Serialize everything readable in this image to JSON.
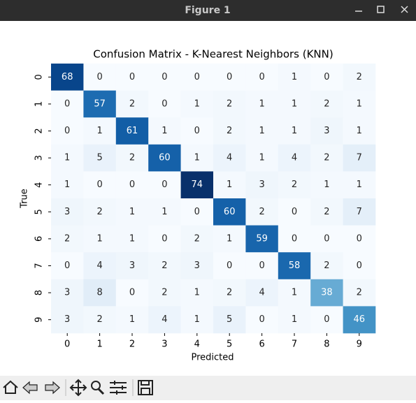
{
  "window_title": "Figure 1",
  "chart_data": {
    "type": "heatmap",
    "title": "Confusion Matrix - K-Nearest Neighbors (KNN)",
    "x_label": "Predicted",
    "y_label": "True",
    "categories": [
      "0",
      "1",
      "2",
      "3",
      "4",
      "5",
      "6",
      "7",
      "8",
      "9"
    ],
    "y_categories": [
      "0",
      "1",
      "2",
      "3",
      "4",
      "5",
      "6",
      "7",
      "8",
      "9"
    ],
    "cmap": "Blues",
    "matrix": [
      [
        68,
        0,
        0,
        0,
        0,
        0,
        0,
        1,
        0,
        2
      ],
      [
        0,
        57,
        2,
        0,
        1,
        2,
        1,
        1,
        2,
        1
      ],
      [
        0,
        1,
        61,
        1,
        0,
        2,
        1,
        1,
        3,
        1
      ],
      [
        1,
        5,
        2,
        60,
        1,
        4,
        1,
        4,
        2,
        7
      ],
      [
        1,
        0,
        0,
        0,
        74,
        1,
        3,
        2,
        1,
        1
      ],
      [
        3,
        2,
        1,
        1,
        0,
        60,
        2,
        0,
        2,
        7
      ],
      [
        2,
        1,
        1,
        0,
        2,
        1,
        59,
        0,
        0,
        0
      ],
      [
        0,
        4,
        3,
        2,
        3,
        0,
        0,
        58,
        2,
        0
      ],
      [
        3,
        8,
        0,
        2,
        1,
        2,
        4,
        1,
        38,
        2
      ],
      [
        3,
        2,
        1,
        4,
        1,
        5,
        0,
        1,
        0,
        46
      ]
    ]
  }
}
